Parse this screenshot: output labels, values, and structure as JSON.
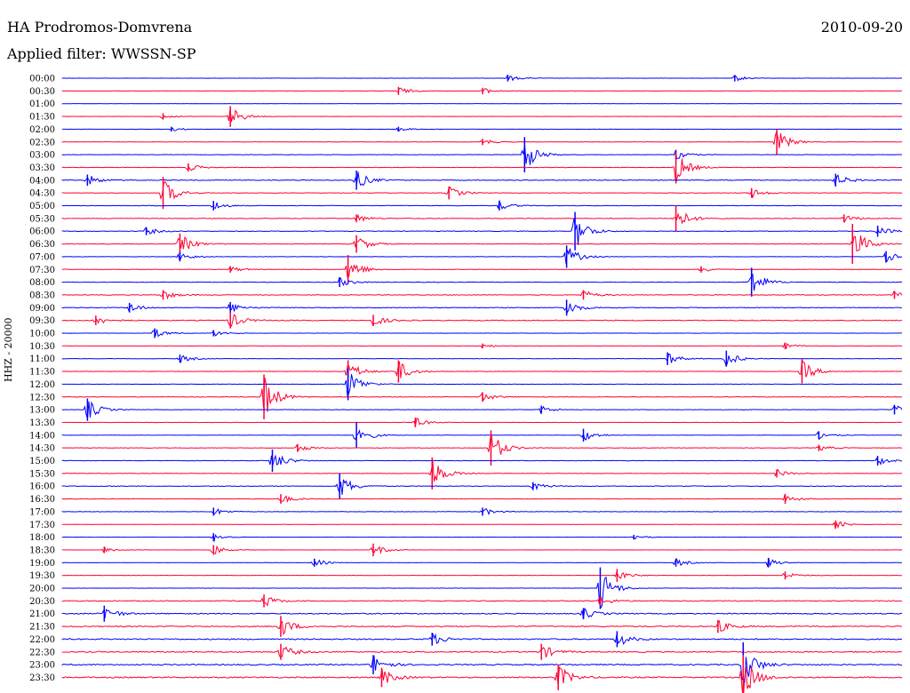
{
  "header": {
    "station": "HA Prodromos-Domvrena",
    "date": "2010-09-20",
    "filter": "Applied filter: WWSSN-SP",
    "channel": "HHZ - 20000"
  },
  "chart_data": {
    "type": "helicorder",
    "title": "HA Prodromos-Domvrena",
    "ylabel": "HHZ - 20000",
    "colors": {
      "even_row": "#0000ff",
      "odd_row": "#ff0033"
    },
    "rows": [
      {
        "time": "00:00",
        "color": "#0000ff",
        "level": 0.05,
        "events": [
          {
            "t": 0.53,
            "amp": 0.4
          },
          {
            "t": 0.8,
            "amp": 0.4
          }
        ]
      },
      {
        "time": "00:30",
        "color": "#ff0033",
        "level": 0.05,
        "events": [
          {
            "t": 0.4,
            "amp": 0.5
          },
          {
            "t": 0.5,
            "amp": 0.4
          }
        ]
      },
      {
        "time": "01:00",
        "color": "#0000ff",
        "level": 0.03,
        "events": []
      },
      {
        "time": "01:30",
        "color": "#ff0033",
        "level": 0.05,
        "events": [
          {
            "t": 0.12,
            "amp": 0.4
          },
          {
            "t": 0.2,
            "amp": 1.3
          }
        ]
      },
      {
        "time": "02:00",
        "color": "#0000ff",
        "level": 0.05,
        "events": [
          {
            "t": 0.13,
            "amp": 0.3
          },
          {
            "t": 0.4,
            "amp": 0.3
          }
        ]
      },
      {
        "time": "02:30",
        "color": "#ff0033",
        "level": 0.08,
        "events": [
          {
            "t": 0.5,
            "amp": 0.4
          },
          {
            "t": 0.85,
            "amp": 1.6
          }
        ]
      },
      {
        "time": "03:00",
        "color": "#0000ff",
        "level": 0.1,
        "events": [
          {
            "t": 0.55,
            "amp": 2.2
          },
          {
            "t": 0.73,
            "amp": 0.6
          }
        ]
      },
      {
        "time": "03:30",
        "color": "#ff0033",
        "level": 0.12,
        "events": [
          {
            "t": 0.15,
            "amp": 0.5
          },
          {
            "t": 0.73,
            "amp": 2.0
          }
        ]
      },
      {
        "time": "04:00",
        "color": "#0000ff",
        "level": 0.18,
        "events": [
          {
            "t": 0.03,
            "amp": 0.7
          },
          {
            "t": 0.35,
            "amp": 1.2
          },
          {
            "t": 0.92,
            "amp": 0.8
          }
        ]
      },
      {
        "time": "04:30",
        "color": "#ff0033",
        "level": 0.12,
        "events": [
          {
            "t": 0.12,
            "amp": 2.0
          },
          {
            "t": 0.46,
            "amp": 0.8
          },
          {
            "t": 0.82,
            "amp": 0.6
          }
        ]
      },
      {
        "time": "05:00",
        "color": "#0000ff",
        "level": 0.12,
        "events": [
          {
            "t": 0.18,
            "amp": 0.6
          },
          {
            "t": 0.52,
            "amp": 0.6
          }
        ]
      },
      {
        "time": "05:30",
        "color": "#ff0033",
        "level": 0.14,
        "events": [
          {
            "t": 0.35,
            "amp": 0.5
          },
          {
            "t": 0.73,
            "amp": 1.6
          },
          {
            "t": 0.93,
            "amp": 0.5
          }
        ]
      },
      {
        "time": "06:00",
        "color": "#0000ff",
        "level": 0.14,
        "events": [
          {
            "t": 0.1,
            "amp": 0.5
          },
          {
            "t": 0.61,
            "amp": 2.4
          },
          {
            "t": 0.97,
            "amp": 0.7
          }
        ]
      },
      {
        "time": "06:30",
        "color": "#ff0033",
        "level": 0.14,
        "events": [
          {
            "t": 0.14,
            "amp": 1.3
          },
          {
            "t": 0.35,
            "amp": 1.1
          },
          {
            "t": 0.94,
            "amp": 2.5
          }
        ]
      },
      {
        "time": "07:00",
        "color": "#0000ff",
        "level": 0.1,
        "events": [
          {
            "t": 0.14,
            "amp": 0.6
          },
          {
            "t": 0.6,
            "amp": 1.4
          },
          {
            "t": 0.98,
            "amp": 0.7
          }
        ]
      },
      {
        "time": "07:30",
        "color": "#ff0033",
        "level": 0.1,
        "events": [
          {
            "t": 0.2,
            "amp": 0.4
          },
          {
            "t": 0.34,
            "amp": 1.8
          },
          {
            "t": 0.76,
            "amp": 0.4
          }
        ]
      },
      {
        "time": "08:00",
        "color": "#0000ff",
        "level": 0.12,
        "events": [
          {
            "t": 0.33,
            "amp": 0.6
          },
          {
            "t": 0.82,
            "amp": 1.8
          }
        ]
      },
      {
        "time": "08:30",
        "color": "#ff0033",
        "level": 0.16,
        "events": [
          {
            "t": 0.12,
            "amp": 0.6
          },
          {
            "t": 0.62,
            "amp": 0.6
          },
          {
            "t": 0.99,
            "amp": 0.5
          }
        ]
      },
      {
        "time": "09:00",
        "color": "#0000ff",
        "level": 0.16,
        "events": [
          {
            "t": 0.08,
            "amp": 0.6
          },
          {
            "t": 0.2,
            "amp": 0.7
          },
          {
            "t": 0.6,
            "amp": 1.0
          }
        ]
      },
      {
        "time": "09:30",
        "color": "#ff0033",
        "level": 0.2,
        "events": [
          {
            "t": 0.04,
            "amp": 0.6
          },
          {
            "t": 0.2,
            "amp": 1.0
          },
          {
            "t": 0.37,
            "amp": 0.7
          }
        ]
      },
      {
        "time": "10:00",
        "color": "#0000ff",
        "level": 0.08,
        "events": [
          {
            "t": 0.11,
            "amp": 0.6
          },
          {
            "t": 0.18,
            "amp": 0.4
          }
        ]
      },
      {
        "time": "10:30",
        "color": "#ff0033",
        "level": 0.06,
        "events": [
          {
            "t": 0.5,
            "amp": 0.3
          },
          {
            "t": 0.86,
            "amp": 0.4
          }
        ]
      },
      {
        "time": "11:00",
        "color": "#0000ff",
        "level": 0.08,
        "events": [
          {
            "t": 0.14,
            "amp": 0.5
          },
          {
            "t": 0.72,
            "amp": 0.8
          },
          {
            "t": 0.79,
            "amp": 1.0
          }
        ]
      },
      {
        "time": "11:30",
        "color": "#ff0033",
        "level": 0.1,
        "events": [
          {
            "t": 0.34,
            "amp": 1.4
          },
          {
            "t": 0.4,
            "amp": 1.4
          },
          {
            "t": 0.88,
            "amp": 1.5
          }
        ]
      },
      {
        "time": "12:00",
        "color": "#0000ff",
        "level": 0.08,
        "events": [
          {
            "t": 0.34,
            "amp": 2.0
          }
        ]
      },
      {
        "time": "12:30",
        "color": "#ff0033",
        "level": 0.12,
        "events": [
          {
            "t": 0.24,
            "amp": 2.8
          },
          {
            "t": 0.5,
            "amp": 0.6
          }
        ]
      },
      {
        "time": "13:00",
        "color": "#0000ff",
        "level": 0.1,
        "events": [
          {
            "t": 0.03,
            "amp": 1.4
          },
          {
            "t": 0.57,
            "amp": 0.5
          },
          {
            "t": 0.99,
            "amp": 0.6
          }
        ]
      },
      {
        "time": "13:30",
        "color": "#ff0033",
        "level": 0.08,
        "events": [
          {
            "t": 0.42,
            "amp": 0.6
          }
        ]
      },
      {
        "time": "14:00",
        "color": "#0000ff",
        "level": 0.06,
        "events": [
          {
            "t": 0.35,
            "amp": 1.6
          },
          {
            "t": 0.62,
            "amp": 0.8
          },
          {
            "t": 0.9,
            "amp": 0.5
          }
        ]
      },
      {
        "time": "14:30",
        "color": "#ff0033",
        "level": 0.1,
        "events": [
          {
            "t": 0.28,
            "amp": 0.5
          },
          {
            "t": 0.51,
            "amp": 2.2
          },
          {
            "t": 0.9,
            "amp": 0.4
          }
        ]
      },
      {
        "time": "15:00",
        "color": "#0000ff",
        "level": 0.12,
        "events": [
          {
            "t": 0.25,
            "amp": 1.4
          },
          {
            "t": 0.97,
            "amp": 0.6
          }
        ]
      },
      {
        "time": "15:30",
        "color": "#ff0033",
        "level": 0.1,
        "events": [
          {
            "t": 0.44,
            "amp": 2.0
          },
          {
            "t": 0.85,
            "amp": 0.5
          }
        ]
      },
      {
        "time": "16:00",
        "color": "#0000ff",
        "level": 0.14,
        "events": [
          {
            "t": 0.33,
            "amp": 1.6
          },
          {
            "t": 0.56,
            "amp": 0.5
          }
        ]
      },
      {
        "time": "16:30",
        "color": "#ff0033",
        "level": 0.1,
        "events": [
          {
            "t": 0.26,
            "amp": 0.6
          },
          {
            "t": 0.86,
            "amp": 0.6
          }
        ]
      },
      {
        "time": "17:00",
        "color": "#0000ff",
        "level": 0.1,
        "events": [
          {
            "t": 0.18,
            "amp": 0.5
          },
          {
            "t": 0.5,
            "amp": 0.5
          }
        ]
      },
      {
        "time": "17:30",
        "color": "#ff0033",
        "level": 0.04,
        "events": [
          {
            "t": 0.92,
            "amp": 0.5
          }
        ]
      },
      {
        "time": "18:00",
        "color": "#0000ff",
        "level": 0.04,
        "events": [
          {
            "t": 0.18,
            "amp": 0.5
          },
          {
            "t": 0.68,
            "amp": 0.3
          }
        ]
      },
      {
        "time": "18:30",
        "color": "#ff0033",
        "level": 0.05,
        "events": [
          {
            "t": 0.05,
            "amp": 0.4
          },
          {
            "t": 0.18,
            "amp": 0.6
          },
          {
            "t": 0.37,
            "amp": 0.8
          }
        ]
      },
      {
        "time": "19:00",
        "color": "#0000ff",
        "level": 0.06,
        "events": [
          {
            "t": 0.3,
            "amp": 0.5
          },
          {
            "t": 0.73,
            "amp": 0.5
          },
          {
            "t": 0.84,
            "amp": 0.6
          }
        ]
      },
      {
        "time": "19:30",
        "color": "#ff0033",
        "level": 0.06,
        "events": [
          {
            "t": 0.66,
            "amp": 0.8
          },
          {
            "t": 0.86,
            "amp": 0.5
          }
        ]
      },
      {
        "time": "20:00",
        "color": "#0000ff",
        "level": 0.08,
        "events": [
          {
            "t": 0.64,
            "amp": 2.6
          }
        ]
      },
      {
        "time": "20:30",
        "color": "#ff0033",
        "level": 0.2,
        "events": [
          {
            "t": 0.24,
            "amp": 0.8
          },
          {
            "t": 0.64,
            "amp": 0.6
          }
        ]
      },
      {
        "time": "21:00",
        "color": "#0000ff",
        "level": 0.24,
        "events": [
          {
            "t": 0.05,
            "amp": 1.0
          },
          {
            "t": 0.62,
            "amp": 0.7
          }
        ]
      },
      {
        "time": "21:30",
        "color": "#ff0033",
        "level": 0.26,
        "events": [
          {
            "t": 0.26,
            "amp": 1.3
          },
          {
            "t": 0.78,
            "amp": 0.8
          }
        ]
      },
      {
        "time": "22:00",
        "color": "#0000ff",
        "level": 0.28,
        "events": [
          {
            "t": 0.44,
            "amp": 0.8
          },
          {
            "t": 0.66,
            "amp": 1.0
          }
        ]
      },
      {
        "time": "22:30",
        "color": "#ff0033",
        "level": 0.28,
        "events": [
          {
            "t": 0.26,
            "amp": 1.0
          },
          {
            "t": 0.57,
            "amp": 1.0
          }
        ]
      },
      {
        "time": "23:00",
        "color": "#0000ff",
        "level": 0.3,
        "events": [
          {
            "t": 0.37,
            "amp": 1.2
          },
          {
            "t": 0.81,
            "amp": 2.8
          }
        ]
      },
      {
        "time": "23:30",
        "color": "#ff0033",
        "level": 0.3,
        "events": [
          {
            "t": 0.38,
            "amp": 1.2
          },
          {
            "t": 0.59,
            "amp": 1.6
          },
          {
            "t": 0.81,
            "amp": 2.8
          }
        ]
      }
    ]
  }
}
